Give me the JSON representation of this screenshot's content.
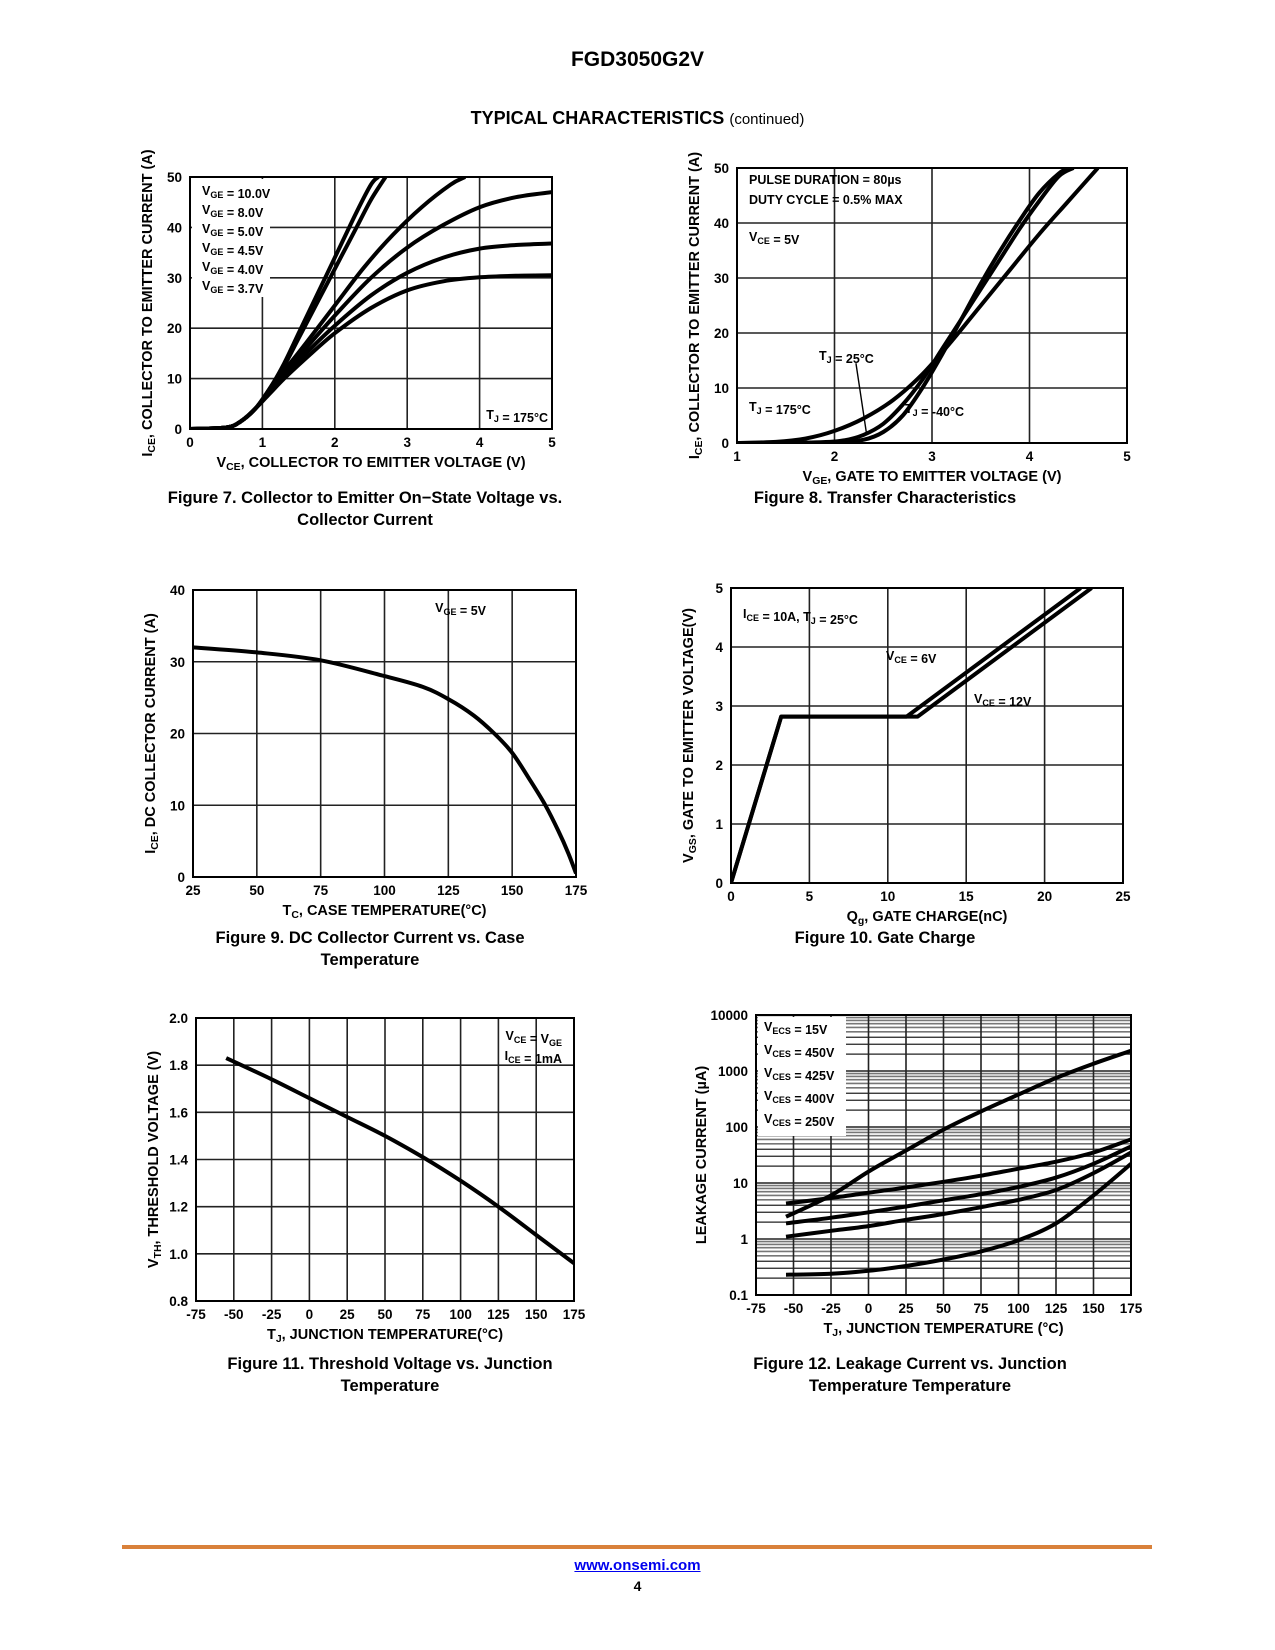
{
  "header": {
    "doc_title": "FGD3050G2V",
    "section_title": "TYPICAL CHARACTERISTICS",
    "section_suffix": "(continued)"
  },
  "footer": {
    "link": "www.onsemi.com",
    "page_number": "4",
    "rule_color": "#d9813a"
  },
  "chart_data": [
    {
      "id": "fig7",
      "type": "line",
      "caption_line1": "Figure 7. Collector to Emitter On−State Voltage vs.",
      "caption_line2": "Collector Current",
      "xlabel_main": "V",
      "xlabel_sub": "CE",
      "xlabel_rest": ", COLLECTOR TO EMITTER VOLTAGE (V)",
      "ylabel_main": "I",
      "ylabel_sub": "CE",
      "ylabel_rest": ", COLLECTOR TO EMITTER CURRENT (A)",
      "xlim": [
        0,
        5
      ],
      "ylim": [
        0,
        50
      ],
      "yscale": "linear",
      "xticks": [
        0,
        1,
        2,
        3,
        4,
        5
      ],
      "yticks": [
        0,
        10,
        20,
        30,
        40,
        50
      ],
      "xtick_labels": [
        "0",
        "1",
        "2",
        "3",
        "4",
        "5"
      ],
      "ytick_labels": [
        "0",
        "10",
        "20",
        "30",
        "40",
        "50"
      ],
      "grid": true,
      "legend_position": "top-left",
      "legend": [
        "V_GE = 10.0V",
        "V_GE = 8.0V",
        "V_GE = 5.0V",
        "V_GE = 4.5V",
        "V_GE = 4.0V",
        "V_GE = 3.7V"
      ],
      "annotations": [
        {
          "text": "T_J = 175°C",
          "position": "bottom-right"
        }
      ],
      "series": [
        {
          "name": "V_GE = 10.0V",
          "x": [
            0,
            0.5,
            0.7,
            0.9,
            1.1,
            1.3,
            1.5,
            1.7,
            1.9,
            2.1,
            2.3,
            2.5,
            2.6
          ],
          "y": [
            0,
            0.3,
            1.5,
            4,
            8,
            13,
            19,
            25,
            31,
            37,
            43,
            48.5,
            50
          ]
        },
        {
          "name": "V_GE = 8.0V",
          "x": [
            0,
            0.5,
            0.7,
            0.9,
            1.1,
            1.3,
            1.5,
            1.7,
            1.9,
            2.1,
            2.3,
            2.5,
            2.7
          ],
          "y": [
            0,
            0.3,
            1.5,
            4,
            8,
            12.5,
            18,
            23.5,
            29,
            34.5,
            40,
            45.5,
            50
          ]
        },
        {
          "name": "V_GE = 5.0V",
          "x": [
            0,
            0.5,
            0.7,
            0.9,
            1.1,
            1.3,
            1.6,
            2.0,
            2.4,
            2.8,
            3.2,
            3.6,
            3.8
          ],
          "y": [
            0,
            0.3,
            1.5,
            4,
            7.5,
            11.5,
            17,
            24.5,
            32,
            38.5,
            44,
            48.5,
            50
          ]
        },
        {
          "name": "V_GE = 4.5V",
          "x": [
            0,
            0.5,
            0.7,
            0.9,
            1.1,
            1.3,
            1.6,
            2.0,
            2.5,
            3.0,
            3.5,
            4.0,
            4.5,
            5.0
          ],
          "y": [
            0,
            0.3,
            1.5,
            4,
            7.5,
            11,
            16,
            22.5,
            30,
            36,
            40.5,
            44,
            46,
            47
          ]
        },
        {
          "name": "V_GE = 4.0V",
          "x": [
            0,
            0.5,
            0.7,
            0.9,
            1.1,
            1.3,
            1.6,
            2.0,
            2.5,
            3.0,
            3.5,
            4.0,
            4.5,
            5.0
          ],
          "y": [
            0,
            0.3,
            1.5,
            4,
            7.5,
            10.5,
            15,
            20.5,
            26.5,
            31,
            34,
            35.8,
            36.5,
            36.8
          ]
        },
        {
          "name": "V_GE = 3.7V",
          "x": [
            0,
            0.5,
            0.7,
            0.9,
            1.1,
            1.3,
            1.6,
            2.0,
            2.5,
            3.0,
            3.5,
            4.0,
            4.5,
            5.0
          ],
          "y": [
            0,
            0.3,
            1.5,
            4,
            7,
            10,
            14,
            19,
            24,
            27.5,
            29.3,
            30.1,
            30.4,
            30.5
          ]
        }
      ]
    },
    {
      "id": "fig8",
      "type": "line",
      "caption_line1": "Figure 8. Transfer Characteristics",
      "caption_line2": "",
      "xlabel_main": "V",
      "xlabel_sub": "GE",
      "xlabel_rest": ", GATE TO EMITTER VOLTAGE (V)",
      "ylabel_main": "I",
      "ylabel_sub": "CE",
      "ylabel_rest": ", COLLECTOR TO EMITTER CURRENT (A)",
      "xlim": [
        1,
        5
      ],
      "ylim": [
        0,
        50
      ],
      "yscale": "linear",
      "xticks": [
        1,
        2,
        3,
        4,
        5
      ],
      "yticks": [
        0,
        10,
        20,
        30,
        40,
        50
      ],
      "xtick_labels": [
        "1",
        "2",
        "3",
        "4",
        "5"
      ],
      "ytick_labels": [
        "0",
        "10",
        "20",
        "30",
        "40",
        "50"
      ],
      "grid": true,
      "annotations": [
        {
          "text": "PULSE DURATION = 80µs",
          "position": "top-left"
        },
        {
          "text": "DUTY CYCLE = 0.5% MAX",
          "position": "top-left"
        },
        {
          "text": "V_CE = 5V",
          "position": "top-left"
        },
        {
          "text": "T_J = 25°C",
          "position": "center-left"
        },
        {
          "text": "T_J = 175°C",
          "position": "bottom-left"
        },
        {
          "text": "T_J = -40°C",
          "position": "bottom-center"
        }
      ],
      "series": [
        {
          "name": "T_J = 175°C",
          "x": [
            1.0,
            1.4,
            1.7,
            2.0,
            2.3,
            2.6,
            2.9,
            3.2,
            3.5,
            3.8,
            4.1,
            4.4,
            4.7
          ],
          "y": [
            0,
            0.2,
            0.8,
            2.2,
            4.5,
            7.8,
            12.5,
            18.5,
            25,
            31.5,
            38,
            44,
            50
          ]
        },
        {
          "name": "T_J = 25°C",
          "x": [
            1.0,
            1.8,
            2.1,
            2.3,
            2.5,
            2.7,
            2.9,
            3.1,
            3.3,
            3.5,
            3.7,
            3.9,
            4.1,
            4.3,
            4.45
          ],
          "y": [
            0,
            0.1,
            0.5,
            1.5,
            3.5,
            7,
            11.5,
            17,
            22.5,
            28,
            33.5,
            39,
            44,
            48.5,
            50
          ]
        },
        {
          "name": "T_J = -40°C",
          "x": [
            1.0,
            2.0,
            2.3,
            2.5,
            2.7,
            2.9,
            3.1,
            3.3,
            3.5,
            3.7,
            3.9,
            4.1,
            4.3,
            4.4
          ],
          "y": [
            0,
            0.05,
            0.6,
            2,
            5,
            10,
            16,
            22.5,
            29,
            35,
            40.5,
            45.5,
            49,
            50
          ]
        }
      ]
    },
    {
      "id": "fig9",
      "type": "line",
      "caption_line1": "Figure 9. DC Collector Current vs. Case",
      "caption_line2": "Temperature",
      "xlabel_main": "T",
      "xlabel_sub": "C",
      "xlabel_rest": ", CASE TEMPERATURE(°C)",
      "ylabel_main": "I",
      "ylabel_sub": "CE",
      "ylabel_rest": ", DC COLLECTOR CURRENT (A)",
      "xlim": [
        25,
        175
      ],
      "ylim": [
        0,
        40
      ],
      "yscale": "linear",
      "xticks": [
        25,
        50,
        75,
        100,
        125,
        150,
        175
      ],
      "yticks": [
        0,
        10,
        20,
        30,
        40
      ],
      "xtick_labels": [
        "25",
        "50",
        "75",
        "100",
        "125",
        "150",
        "175"
      ],
      "ytick_labels": [
        "0",
        "10",
        "20",
        "30",
        "40"
      ],
      "grid": true,
      "annotations": [
        {
          "text": "V_GE = 5V",
          "position": "top-right"
        }
      ],
      "series": [
        {
          "name": "I_CE",
          "x": [
            25,
            50,
            75,
            100,
            115,
            125,
            135,
            143,
            150,
            157,
            163,
            168,
            172,
            175
          ],
          "y": [
            32,
            31.3,
            30.2,
            28,
            26.5,
            24.8,
            22.5,
            20,
            17.3,
            13.5,
            10,
            6.5,
            3.3,
            0.5
          ]
        }
      ]
    },
    {
      "id": "fig10",
      "type": "line",
      "caption_line1": "Figure 10. Gate Charge",
      "caption_line2": "",
      "xlabel_main": "Q",
      "xlabel_sub": "g",
      "xlabel_rest": ", GATE CHARGE(nC)",
      "ylabel_main": "V",
      "ylabel_sub": "GS",
      "ylabel_rest": ", GATE TO EMITTER VOLTAGE(V)",
      "xlim": [
        0,
        25
      ],
      "ylim": [
        0,
        5
      ],
      "yscale": "linear",
      "xticks": [
        0,
        5,
        10,
        15,
        20,
        25
      ],
      "yticks": [
        0,
        1,
        2,
        3,
        4,
        5
      ],
      "xtick_labels": [
        "0",
        "5",
        "10",
        "15",
        "20",
        "25"
      ],
      "ytick_labels": [
        "0",
        "1",
        "2",
        "3",
        "4",
        "5"
      ],
      "grid": true,
      "annotations": [
        {
          "text": "I_CE = 10A, T_J = 25°C",
          "position": "top-left"
        },
        {
          "text": "V_CE = 6V",
          "position": "center"
        },
        {
          "text": "V_CE = 12V",
          "position": "center-right"
        }
      ],
      "series": [
        {
          "name": "V_CE = 6V",
          "x": [
            0,
            3.2,
            11.2,
            22.3
          ],
          "y": [
            0,
            2.82,
            2.82,
            5
          ]
        },
        {
          "name": "V_CE = 12V",
          "x": [
            0,
            3.2,
            11.9,
            23.0
          ],
          "y": [
            0,
            2.82,
            2.82,
            5
          ]
        }
      ]
    },
    {
      "id": "fig11",
      "type": "line",
      "caption_line1": "Figure 11. Threshold Voltage vs. Junction",
      "caption_line2": "Temperature",
      "xlabel_main": "T",
      "xlabel_sub": "J",
      "xlabel_rest": ", JUNCTION TEMPERATURE(°C)",
      "ylabel_main": "V",
      "ylabel_sub": "TH",
      "ylabel_rest": ", THRESHOLD VOLTAGE (V)",
      "xlim": [
        -75,
        175
      ],
      "ylim": [
        0.8,
        2.0
      ],
      "yscale": "linear",
      "xticks": [
        -75,
        -50,
        -25,
        0,
        25,
        50,
        75,
        100,
        125,
        150,
        175
      ],
      "yticks": [
        0.8,
        1.0,
        1.2,
        1.4,
        1.6,
        1.8,
        2.0
      ],
      "xtick_labels": [
        "-75",
        "-50",
        "-25",
        "0",
        "25",
        "50",
        "75",
        "100",
        "125",
        "150",
        "175"
      ],
      "ytick_labels": [
        "0.8",
        "1.0",
        "1.2",
        "1.4",
        "1.6",
        "1.8",
        "2.0"
      ],
      "grid": true,
      "annotations": [
        {
          "text": "V_CE = V_GE",
          "position": "top-right"
        },
        {
          "text": "I_CE = 1mA",
          "position": "top-right"
        }
      ],
      "series": [
        {
          "name": "V_TH",
          "x": [
            -55,
            -25,
            0,
            25,
            50,
            75,
            100,
            125,
            150,
            175
          ],
          "y": [
            1.83,
            1.74,
            1.66,
            1.58,
            1.5,
            1.41,
            1.31,
            1.2,
            1.08,
            0.96
          ]
        }
      ]
    },
    {
      "id": "fig12",
      "type": "line",
      "caption_line1": "Figure 12. Leakage Current vs. Junction",
      "caption_line2": "Temperature Temperature",
      "xlabel_main": "T",
      "xlabel_sub": "J",
      "xlabel_rest": ", JUNCTION TEMPERATURE (°C)",
      "ylabel_main": "LEAKAGE CURRENT (µA)",
      "ylabel_sub": "",
      "ylabel_rest": "",
      "xlim": [
        -75,
        175
      ],
      "ylim": [
        0.1,
        10000
      ],
      "yscale": "log",
      "xticks": [
        -75,
        -50,
        -25,
        0,
        25,
        50,
        75,
        100,
        125,
        150,
        175
      ],
      "yticks": [
        0.1,
        1,
        10,
        100,
        1000,
        10000
      ],
      "xtick_labels": [
        "-75",
        "-50",
        "-25",
        "0",
        "25",
        "50",
        "75",
        "100",
        "125",
        "150",
        "175"
      ],
      "ytick_labels": [
        "0.1",
        "1",
        "10",
        "100",
        "1000",
        "10000"
      ],
      "grid": true,
      "legend_position": "top-left",
      "legend": [
        "V_ECS = 15V",
        "V_CES = 450V",
        "V_CES = 425V",
        "V_CES = 400V",
        "V_CES = 250V"
      ],
      "series": [
        {
          "name": "V_ECS = 15V",
          "x": [
            -55,
            -25,
            0,
            25,
            50,
            75,
            100,
            125,
            150,
            175
          ],
          "y": [
            2.5,
            6,
            16,
            38,
            90,
            190,
            380,
            750,
            1350,
            2300
          ]
        },
        {
          "name": "V_CES = 450V",
          "x": [
            -55,
            -25,
            0,
            25,
            50,
            75,
            100,
            125,
            150,
            175
          ],
          "y": [
            4.3,
            5.4,
            6.7,
            8.3,
            10.5,
            13.5,
            18,
            24,
            35,
            60
          ]
        },
        {
          "name": "V_CES = 425V",
          "x": [
            -55,
            -25,
            0,
            25,
            50,
            75,
            100,
            125,
            150,
            175
          ],
          "y": [
            1.9,
            2.4,
            3.0,
            3.8,
            4.9,
            6.3,
            8.5,
            12.5,
            22,
            45
          ]
        },
        {
          "name": "V_CES = 400V",
          "x": [
            -55,
            -25,
            0,
            25,
            50,
            75,
            100,
            125,
            150,
            175
          ],
          "y": [
            1.1,
            1.4,
            1.7,
            2.2,
            2.8,
            3.7,
            5.0,
            7.5,
            15,
            35
          ]
        },
        {
          "name": "V_CES = 250V",
          "x": [
            -55,
            -25,
            0,
            25,
            50,
            75,
            100,
            125,
            150,
            175
          ],
          "y": [
            0.23,
            0.24,
            0.27,
            0.33,
            0.43,
            0.6,
            0.95,
            1.9,
            6,
            22
          ]
        }
      ]
    }
  ]
}
